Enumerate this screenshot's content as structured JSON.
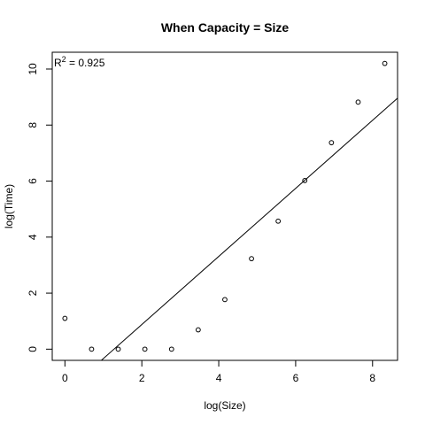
{
  "chart_data": {
    "type": "scatter",
    "title": "When Capacity = Size",
    "xlabel": "log(Size)",
    "ylabel": "log(Time)",
    "xlim": [
      -0.33,
      8.65
    ],
    "ylim": [
      -0.4,
      10.6
    ],
    "x_ticks": [
      0,
      2,
      4,
      6,
      8
    ],
    "y_ticks": [
      0,
      2,
      4,
      6,
      8,
      10
    ],
    "x": [
      0,
      0.693,
      1.386,
      2.079,
      2.773,
      3.466,
      4.159,
      4.852,
      5.545,
      6.238,
      6.931,
      7.625,
      8.318
    ],
    "y": [
      1.1,
      0,
      0,
      0,
      0,
      0.69,
      1.77,
      3.23,
      4.57,
      6.02,
      7.37,
      8.82,
      10.2
    ],
    "fit_line": {
      "intercept": -1.55,
      "slope": 1.215
    },
    "annotation": {
      "label": "R",
      "superscript": "2",
      "text": " = 0.925"
    },
    "grid": false,
    "legend": "none"
  }
}
